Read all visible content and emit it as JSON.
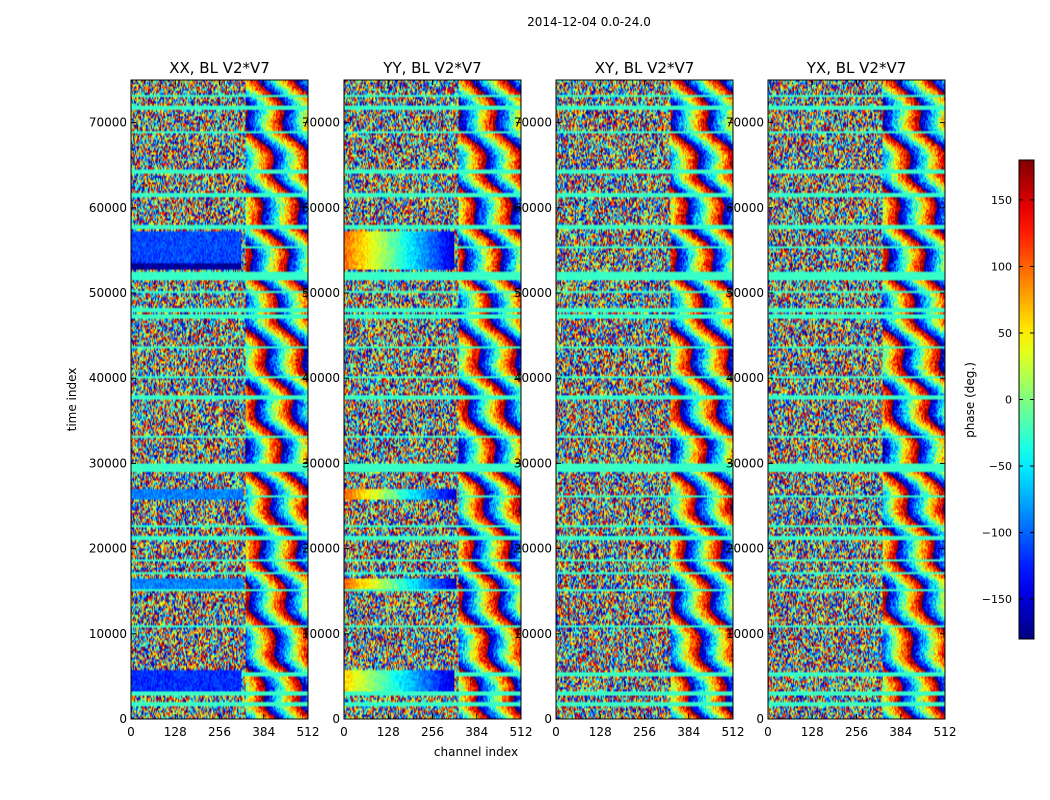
{
  "figure_title": "2014-12-04 0.0-24.0",
  "chart_data": [
    {
      "type": "heatmap",
      "title": "XX, BL V2*V7",
      "xlabel": "",
      "ylabel": "time index",
      "xlim": [
        0,
        512
      ],
      "ylim": [
        0,
        75000
      ],
      "xticks": [
        "0",
        "128",
        "256",
        "384",
        "512"
      ],
      "yticks": [
        "0",
        "10000",
        "20000",
        "30000",
        "40000",
        "50000",
        "60000",
        "70000"
      ],
      "value_label": "phase (deg.)",
      "value_range": [
        -180,
        180
      ],
      "coherent_bands": [
        {
          "time": [
            52700,
            57300
          ],
          "channels": [
            0,
            320
          ],
          "phase": -110
        },
        {
          "time": [
            52700,
            53600
          ],
          "channels": [
            0,
            320
          ],
          "phase": -170
        },
        {
          "time": [
            25800,
            27100
          ],
          "channels": [
            0,
            325
          ],
          "phase": -90
        },
        {
          "time": [
            15300,
            16600
          ],
          "channels": [
            0,
            325
          ],
          "phase": -90
        },
        {
          "time": [
            3300,
            5700
          ],
          "channels": [
            0,
            320
          ],
          "phase": -120
        }
      ]
    },
    {
      "type": "heatmap",
      "title": "YY, BL V2*V7",
      "xlabel": "channel index",
      "ylabel": "",
      "xlim": [
        0,
        512
      ],
      "ylim": [
        0,
        75000
      ],
      "xticks": [
        "0",
        "128",
        "256",
        "384",
        "512"
      ],
      "yticks": [
        "0",
        "10000",
        "20000",
        "30000",
        "40000",
        "50000",
        "60000",
        "70000"
      ],
      "value_label": "phase (deg.)",
      "value_range": [
        -180,
        180
      ],
      "coherent_bands": [
        {
          "time": [
            52700,
            57300
          ],
          "channels": [
            0,
            320
          ],
          "phase": 100,
          "gradient_to": -150
        },
        {
          "time": [
            25800,
            27100
          ],
          "channels": [
            0,
            325
          ],
          "phase": 100,
          "gradient_to": -150
        },
        {
          "time": [
            15300,
            16600
          ],
          "channels": [
            0,
            325
          ],
          "phase": 100,
          "gradient_to": -150
        },
        {
          "time": [
            3300,
            5700
          ],
          "channels": [
            0,
            320
          ],
          "phase": 60,
          "gradient_to": -150
        }
      ]
    },
    {
      "type": "heatmap",
      "title": "XY, BL V2*V7",
      "xlabel": "",
      "ylabel": "",
      "xlim": [
        0,
        512
      ],
      "ylim": [
        0,
        75000
      ],
      "xticks": [
        "0",
        "128",
        "256",
        "384",
        "512"
      ],
      "yticks": [
        "0",
        "10000",
        "20000",
        "30000",
        "40000",
        "50000",
        "60000",
        "70000"
      ],
      "value_label": "phase (deg.)",
      "value_range": [
        -180,
        180
      ],
      "coherent_bands": []
    },
    {
      "type": "heatmap",
      "title": "YX, BL V2*V7",
      "xlabel": "",
      "ylabel": "",
      "xlim": [
        0,
        512
      ],
      "ylim": [
        0,
        75000
      ],
      "xticks": [
        "0",
        "128",
        "256",
        "384",
        "512"
      ],
      "yticks": [
        "0",
        "10000",
        "20000",
        "30000",
        "40000",
        "50000",
        "60000",
        "70000"
      ],
      "value_label": "phase (deg.)",
      "value_range": [
        -180,
        180
      ],
      "coherent_bands": []
    }
  ],
  "colorbar": {
    "label": "phase (deg.)",
    "range": [
      -180,
      180
    ],
    "ticks": [
      150,
      100,
      50,
      0,
      -50,
      -100,
      -150
    ],
    "tick_labels": [
      "150",
      "100",
      "50",
      "0",
      "−50",
      "−100",
      "−150"
    ]
  },
  "flagged_time_rows": [
    1800,
    3000,
    5300,
    10900,
    15100,
    17100,
    18600,
    21300,
    22600,
    26100,
    29200,
    29700,
    33100,
    37800,
    40100,
    43600,
    47300,
    48000,
    50100,
    51700,
    52200,
    55400,
    57700,
    61500,
    64300,
    68900,
    71800,
    73100
  ]
}
